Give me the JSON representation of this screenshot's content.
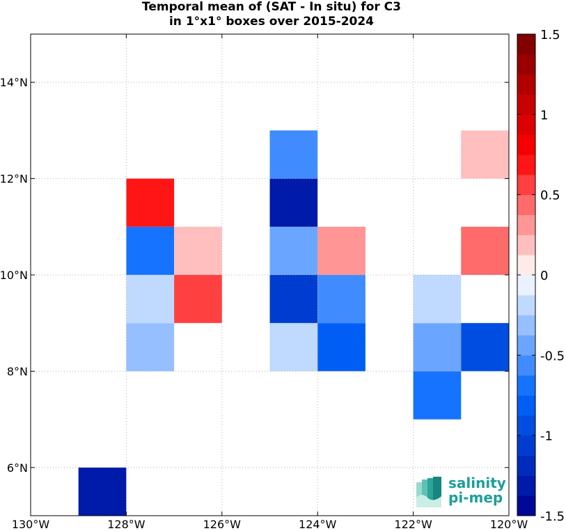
{
  "chart_data": {
    "type": "heatmap",
    "title": "Temporal mean of (SAT - In situ) for C3",
    "subtitle": "in 1°x1° boxes over 2015-2024",
    "x_ticks": [
      "130°W",
      "128°W",
      "126°W",
      "124°W",
      "122°W",
      "120°W"
    ],
    "y_ticks": [
      "6°N",
      "8°N",
      "10°N",
      "12°N",
      "14°N"
    ],
    "xlim": [
      -130,
      -120
    ],
    "ylim": [
      5,
      15
    ],
    "grid": true,
    "colorbar": {
      "ticks": [
        "1.5",
        "1",
        "0.5",
        "0",
        "-0.5",
        "-1",
        "-1.5"
      ],
      "range": [
        -1.5,
        1.5
      ],
      "colors": {
        "negative_end": "#00008c",
        "mid_negative": "#0066ff",
        "zero": "#ffffff",
        "mid_positive": "#ff0000",
        "positive_end": "#780000"
      }
    },
    "cells": [
      {
        "lon_min": -129,
        "lat_min": 5,
        "value": -1.35
      },
      {
        "lon_min": -128,
        "lat_min": 8,
        "value": -0.35
      },
      {
        "lon_min": -128,
        "lat_min": 9,
        "value": -0.25
      },
      {
        "lon_min": -128,
        "lat_min": 10,
        "value": -0.65
      },
      {
        "lon_min": -128,
        "lat_min": 11,
        "value": 0.65
      },
      {
        "lon_min": -127,
        "lat_min": 9,
        "value": 0.5
      },
      {
        "lon_min": -127,
        "lat_min": 10,
        "value": 0.15
      },
      {
        "lon_min": -125,
        "lat_min": 8,
        "value": -0.15
      },
      {
        "lon_min": -125,
        "lat_min": 9,
        "value": -1.1
      },
      {
        "lon_min": -125,
        "lat_min": 10,
        "value": -0.45
      },
      {
        "lon_min": -125,
        "lat_min": 11,
        "value": -1.35
      },
      {
        "lon_min": -125,
        "lat_min": 12,
        "value": -0.55
      },
      {
        "lon_min": -124,
        "lat_min": 8,
        "value": -0.85
      },
      {
        "lon_min": -124,
        "lat_min": 9,
        "value": -0.55
      },
      {
        "lon_min": -124,
        "lat_min": 10,
        "value": 0.25
      },
      {
        "lon_min": -122,
        "lat_min": 7,
        "value": -0.65
      },
      {
        "lon_min": -122,
        "lat_min": 8,
        "value": -0.45
      },
      {
        "lon_min": -122,
        "lat_min": 9,
        "value": -0.15
      },
      {
        "lon_min": -121,
        "lat_min": 8,
        "value": -0.95
      },
      {
        "lon_min": -121,
        "lat_min": 10,
        "value": 0.4
      },
      {
        "lon_min": -121,
        "lat_min": 12,
        "value": 0.15
      }
    ]
  },
  "logo": {
    "line1": "salinity",
    "line2": "pi-mep"
  }
}
